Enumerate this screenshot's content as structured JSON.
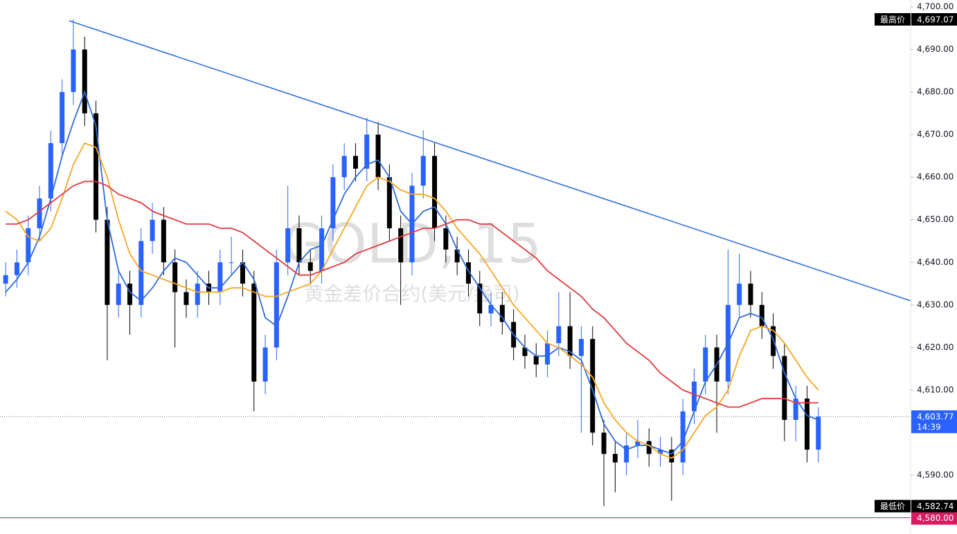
{
  "chart_data": {
    "type": "candlestick",
    "title": "GOLD, 15",
    "subtitle": "黄金差价合约(美元/盎司)",
    "up_color": "#2962ff",
    "down_color": "#000000",
    "open": [
      4635,
      4637,
      4640,
      4648,
      4655,
      4668,
      4680,
      4690,
      4675,
      4650,
      4630,
      4635,
      4630,
      4645,
      4650,
      4640,
      4633,
      4630,
      4635,
      4633,
      4640,
      4640,
      4635,
      4612,
      4620,
      4640,
      4648,
      4640,
      4638,
      4648,
      4660,
      4665,
      4662,
      4670,
      4660,
      4648,
      4640,
      4658,
      4665,
      4648,
      4643,
      4640,
      4635,
      4628,
      4630,
      4626,
      4620,
      4618,
      4616,
      4621,
      4625,
      4618,
      4622,
      4600,
      4595,
      4593,
      4597,
      4598,
      4595,
      4596,
      4593,
      4605,
      4612,
      4620,
      4612,
      4630,
      4635,
      4630,
      4625,
      4618,
      4603,
      4608,
      4596
    ],
    "high": [
      4640,
      4643,
      4651,
      4658,
      4671,
      4683,
      4697.07,
      4693,
      4678,
      4653,
      4638,
      4638,
      4648,
      4654,
      4653,
      4643,
      4636,
      4638,
      4638,
      4643,
      4646,
      4643,
      4638,
      4623,
      4643,
      4658,
      4651,
      4643,
      4651,
      4663,
      4668,
      4668,
      4674,
      4673,
      4663,
      4651,
      4661,
      4671,
      4668,
      4651,
      4646,
      4643,
      4638,
      4633,
      4633,
      4629,
      4623,
      4621,
      4624,
      4633,
      4633,
      4625,
      4625,
      4603,
      4598,
      4600,
      4603,
      4601,
      4599,
      4599,
      4608,
      4615,
      4623,
      4623,
      4643,
      4642,
      4638,
      4633,
      4628,
      4621,
      4611,
      4611,
      4606
    ],
    "low": [
      4632,
      4634,
      4637,
      4645,
      4652,
      4665,
      4677,
      4672,
      4647,
      4617,
      4627,
      4623,
      4627,
      4642,
      4637,
      4620,
      4627,
      4627,
      4630,
      4630,
      4637,
      4632,
      4605,
      4609,
      4617,
      4637,
      4637,
      4635,
      4635,
      4645,
      4657,
      4659,
      4659,
      4657,
      4645,
      4630,
      4637,
      4655,
      4645,
      4640,
      4637,
      4632,
      4625,
      4625,
      4623,
      4617,
      4615,
      4613,
      4613,
      4618,
      4615,
      4600,
      4597,
      4582.74,
      4586,
      4590,
      4594,
      4592,
      4592,
      4584,
      4590,
      4602,
      4609,
      4600,
      4609,
      4627,
      4627,
      4622,
      4615,
      4598,
      4598,
      4593,
      4593
    ],
    "close": [
      4637,
      4640,
      4648,
      4655,
      4668,
      4680,
      4690,
      4675,
      4650,
      4630,
      4635,
      4630,
      4645,
      4650,
      4640,
      4633,
      4630,
      4635,
      4633,
      4640,
      4640,
      4635,
      4612,
      4620,
      4640,
      4648,
      4640,
      4638,
      4648,
      4660,
      4665,
      4662,
      4670,
      4660,
      4648,
      4640,
      4658,
      4665,
      4648,
      4643,
      4640,
      4635,
      4628,
      4630,
      4626,
      4620,
      4618,
      4616,
      4621,
      4625,
      4618,
      4622,
      4600,
      4595,
      4593,
      4597,
      4598,
      4595,
      4596,
      4593,
      4605,
      4612,
      4620,
      4612,
      4630,
      4635,
      4630,
      4625,
      4618,
      4603,
      4608,
      4596,
      4603.77
    ],
    "series": [
      {
        "color": "#2f6ad8",
        "values": [
          4633,
          4636,
          4640,
          4646,
          4655,
          4665,
          4673,
          4680,
          4672,
          4650,
          4638,
          4633,
          4631,
          4634,
          4638,
          4641,
          4640,
          4637,
          4634,
          4634,
          4637,
          4640,
          4636,
          4627,
          4625,
          4632,
          4640,
          4643,
          4644,
          4650,
          4656,
          4660,
          4663,
          4664,
          4660,
          4652,
          4649,
          4652,
          4653,
          4649,
          4643,
          4638,
          4634,
          4630,
          4627,
          4623,
          4620,
          4618,
          4618,
          4620,
          4619,
          4617,
          4610,
          4602,
          4598,
          4596,
          4597,
          4597,
          4596,
          4595,
          4598,
          4605,
          4612,
          4616,
          4621,
          4627,
          4628,
          4627,
          4622,
          4614,
          4608,
          4604,
          4603
        ]
      },
      {
        "color": "#f5a623",
        "values": [
          4652,
          4650,
          4646,
          4645,
          4648,
          4655,
          4663,
          4668,
          4667,
          4660,
          4650,
          4642,
          4638,
          4637,
          4636,
          4635,
          4634,
          4633,
          4633,
          4633,
          4634,
          4634,
          4633,
          4632,
          4632,
          4633,
          4634,
          4635,
          4638,
          4643,
          4648,
          4653,
          4658,
          4660,
          4659,
          4657,
          4656,
          4656,
          4655,
          4652,
          4648,
          4645,
          4642,
          4638,
          4634,
          4630,
          4627,
          4624,
          4621,
          4620,
          4618,
          4616,
          4613,
          4607,
          4603,
          4600,
          4598,
          4597,
          4595,
          4594,
          4596,
          4600,
          4604,
          4606,
          4610,
          4618,
          4624,
          4625,
          4624,
          4621,
          4617,
          4613,
          4610
        ]
      },
      {
        "color": "#e03a3e",
        "values": [
          4649,
          4649,
          4650,
          4652,
          4654,
          4656,
          4658,
          4659,
          4659,
          4658,
          4656,
          4655,
          4654,
          4652,
          4651,
          4650,
          4649,
          4649,
          4649,
          4648,
          4648,
          4647,
          4645,
          4643,
          4641,
          4639,
          4637,
          4637,
          4638,
          4639,
          4640,
          4642,
          4643,
          4644,
          4645,
          4646,
          4647,
          4648,
          4648,
          4649,
          4650,
          4650,
          4649,
          4649,
          4647,
          4645,
          4643,
          4641,
          4638,
          4636,
          4634,
          4632,
          4629,
          4627,
          4624,
          4621,
          4619,
          4617,
          4614,
          4612,
          4610,
          4609,
          4608,
          4607,
          4606,
          4606,
          4607,
          4608,
          4608,
          4608,
          4607,
          4607,
          4607
        ]
      }
    ],
    "trendline": {
      "color": "#2f6fdc",
      "x": [
        5.63,
        80.2
      ],
      "y": [
        4696.75,
        4630.95
      ]
    },
    "ylim": [
      4576.19,
      4701.62
    ],
    "yticks": [
      {
        "value": 4590,
        "label": "4,590.00"
      },
      {
        "value": 4610,
        "label": "4,610.00"
      },
      {
        "value": 4620,
        "label": "4,620.00"
      },
      {
        "value": 4630,
        "label": "4,630.00"
      },
      {
        "value": 4640,
        "label": "4,640.00"
      },
      {
        "value": 4650,
        "label": "4,650.00"
      },
      {
        "value": 4660,
        "label": "4,660.00"
      },
      {
        "value": 4670,
        "label": "4,670.00"
      },
      {
        "value": 4680,
        "label": "4,680.00"
      },
      {
        "value": 4690,
        "label": "4,690.00"
      },
      {
        "value": 4700,
        "label": "4,700.00"
      }
    ],
    "high_marker": {
      "text": "最高价",
      "value": 4697.07,
      "label": "4,697.07"
    },
    "low_marker": {
      "text": "最低价",
      "value": 4582.74,
      "label": "4,582.74"
    },
    "last_price": {
      "value": 4603.77,
      "label": "4,603.77",
      "countdown": "14:39",
      "color": "#2962ff"
    },
    "level": {
      "value": 4580,
      "label": "4,580.00",
      "color": "#d81b60"
    }
  }
}
